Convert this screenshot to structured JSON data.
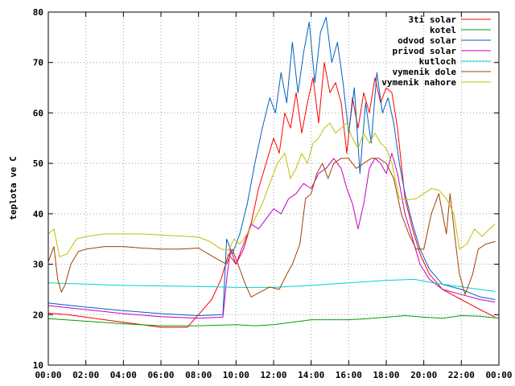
{
  "chart_data": {
    "type": "line",
    "ylabel": "teplota ve C",
    "xlabel": "",
    "ylim": [
      10,
      80
    ],
    "xlim": [
      0,
      24
    ],
    "grid": true,
    "legend_position": "top-right",
    "yticks": [
      10,
      20,
      30,
      40,
      50,
      60,
      70,
      80
    ],
    "xticks": [
      {
        "t": 0,
        "label": "00:00"
      },
      {
        "t": 2,
        "label": "02:00"
      },
      {
        "t": 4,
        "label": "04:00"
      },
      {
        "t": 6,
        "label": "06:00"
      },
      {
        "t": 8,
        "label": "08:00"
      },
      {
        "t": 10,
        "label": "10:00"
      },
      {
        "t": 12,
        "label": "12:00"
      },
      {
        "t": 14,
        "label": "14:00"
      },
      {
        "t": 16,
        "label": "16:00"
      },
      {
        "t": 18,
        "label": "18:00"
      },
      {
        "t": 20,
        "label": "20:00"
      },
      {
        "t": 22,
        "label": "22:00"
      },
      {
        "t": 24,
        "label": "00:00"
      }
    ],
    "series": [
      {
        "name": "3ti solar",
        "color": "#ff0000",
        "points": [
          [
            0,
            20.3
          ],
          [
            1,
            20
          ],
          [
            2,
            19.5
          ],
          [
            3,
            19
          ],
          [
            4,
            18.5
          ],
          [
            5,
            18
          ],
          [
            6,
            17.5
          ],
          [
            7.4,
            17.5
          ],
          [
            8,
            20
          ],
          [
            8.7,
            23
          ],
          [
            9.2,
            27
          ],
          [
            9.6,
            32
          ],
          [
            10,
            30
          ],
          [
            10.4,
            33
          ],
          [
            10.8,
            38
          ],
          [
            11.2,
            45
          ],
          [
            11.6,
            50
          ],
          [
            12,
            55
          ],
          [
            12.3,
            52
          ],
          [
            12.6,
            60
          ],
          [
            12.9,
            57
          ],
          [
            13.2,
            64
          ],
          [
            13.5,
            56
          ],
          [
            13.8,
            62
          ],
          [
            14.1,
            67
          ],
          [
            14.4,
            58
          ],
          [
            14.7,
            70
          ],
          [
            15,
            64
          ],
          [
            15.3,
            66
          ],
          [
            15.6,
            62
          ],
          [
            15.9,
            52
          ],
          [
            16.2,
            63
          ],
          [
            16.5,
            57
          ],
          [
            16.8,
            64
          ],
          [
            17.1,
            60
          ],
          [
            17.4,
            67
          ],
          [
            17.7,
            62
          ],
          [
            18,
            65
          ],
          [
            18.3,
            64
          ],
          [
            18.6,
            57
          ],
          [
            19,
            43
          ],
          [
            19.4,
            37
          ],
          [
            19.8,
            32
          ],
          [
            20.3,
            28
          ],
          [
            21,
            25
          ],
          [
            22,
            23
          ],
          [
            23,
            21
          ],
          [
            23.8,
            19.5
          ]
        ]
      },
      {
        "name": "kotel",
        "color": "#00a000",
        "points": [
          [
            0,
            19.2
          ],
          [
            2,
            18.7
          ],
          [
            4,
            18.2
          ],
          [
            6,
            17.8
          ],
          [
            8,
            17.8
          ],
          [
            10,
            18
          ],
          [
            11,
            17.8
          ],
          [
            12,
            18
          ],
          [
            13,
            18.5
          ],
          [
            14,
            19
          ],
          [
            15,
            19
          ],
          [
            16,
            19
          ],
          [
            17,
            19.2
          ],
          [
            18,
            19.5
          ],
          [
            19,
            19.8
          ],
          [
            20,
            19.5
          ],
          [
            21,
            19.3
          ],
          [
            22,
            19.8
          ],
          [
            23,
            19.7
          ],
          [
            24,
            19.3
          ]
        ]
      },
      {
        "name": "odvod solar",
        "color": "#0060c0",
        "points": [
          [
            0,
            22.3
          ],
          [
            2,
            21.5
          ],
          [
            4,
            20.8
          ],
          [
            6,
            20.2
          ],
          [
            8,
            19.8
          ],
          [
            9.3,
            20
          ],
          [
            9.5,
            35
          ],
          [
            9.8,
            32
          ],
          [
            10.2,
            36
          ],
          [
            10.6,
            42
          ],
          [
            11,
            50
          ],
          [
            11.4,
            57
          ],
          [
            11.8,
            63
          ],
          [
            12.1,
            60
          ],
          [
            12.4,
            68
          ],
          [
            12.7,
            62
          ],
          [
            13,
            74
          ],
          [
            13.3,
            64
          ],
          [
            13.6,
            72
          ],
          [
            13.9,
            78
          ],
          [
            14.2,
            66
          ],
          [
            14.5,
            76
          ],
          [
            14.8,
            79
          ],
          [
            15.1,
            70
          ],
          [
            15.4,
            74
          ],
          [
            15.7,
            66
          ],
          [
            16,
            56
          ],
          [
            16.3,
            65
          ],
          [
            16.6,
            48
          ],
          [
            16.9,
            62
          ],
          [
            17.2,
            54
          ],
          [
            17.5,
            68
          ],
          [
            17.8,
            60
          ],
          [
            18.1,
            63
          ],
          [
            18.4,
            58
          ],
          [
            18.7,
            50
          ],
          [
            19,
            44
          ],
          [
            19.4,
            38
          ],
          [
            19.8,
            33
          ],
          [
            20.3,
            29
          ],
          [
            21,
            26
          ],
          [
            22,
            25
          ],
          [
            23,
            23.5
          ],
          [
            23.8,
            23
          ]
        ]
      },
      {
        "name": "privod solar",
        "color": "#c000c0",
        "points": [
          [
            0,
            21.8
          ],
          [
            2,
            21
          ],
          [
            4,
            20.2
          ],
          [
            6,
            19.6
          ],
          [
            8,
            19.3
          ],
          [
            9.3,
            19.5
          ],
          [
            9.5,
            27
          ],
          [
            9.7,
            33
          ],
          [
            10,
            30
          ],
          [
            10.4,
            34
          ],
          [
            10.8,
            38
          ],
          [
            11.2,
            37
          ],
          [
            11.6,
            39
          ],
          [
            12,
            41
          ],
          [
            12.4,
            40
          ],
          [
            12.8,
            43
          ],
          [
            13.2,
            44
          ],
          [
            13.6,
            46
          ],
          [
            14,
            45
          ],
          [
            14.4,
            48
          ],
          [
            14.8,
            49
          ],
          [
            15.2,
            51
          ],
          [
            15.6,
            49
          ],
          [
            15.9,
            45
          ],
          [
            16.2,
            42
          ],
          [
            16.5,
            37
          ],
          [
            16.8,
            42
          ],
          [
            17.1,
            49
          ],
          [
            17.4,
            51
          ],
          [
            17.7,
            50
          ],
          [
            18,
            48
          ],
          [
            18.3,
            52
          ],
          [
            18.6,
            48
          ],
          [
            19,
            40
          ],
          [
            19.4,
            35
          ],
          [
            19.8,
            30
          ],
          [
            20.3,
            27
          ],
          [
            21,
            25
          ],
          [
            22,
            24
          ],
          [
            23,
            23
          ],
          [
            23.8,
            22.5
          ]
        ]
      },
      {
        "name": "kutloch",
        "color": "#00d0d0",
        "points": [
          [
            0,
            26.3
          ],
          [
            4,
            25.8
          ],
          [
            8,
            25.6
          ],
          [
            10,
            25.4
          ],
          [
            12,
            25.4
          ],
          [
            14,
            25.8
          ],
          [
            16,
            26.3
          ],
          [
            18,
            26.8
          ],
          [
            19.5,
            27
          ],
          [
            20.5,
            26.3
          ],
          [
            22,
            25.5
          ],
          [
            23.8,
            24.6
          ]
        ]
      },
      {
        "name": "vymenik dole",
        "color": "#a04000",
        "points": [
          [
            0,
            30.5
          ],
          [
            0.3,
            33.5
          ],
          [
            0.5,
            27
          ],
          [
            0.7,
            24.5
          ],
          [
            0.9,
            26
          ],
          [
            1.2,
            30
          ],
          [
            1.6,
            32.5
          ],
          [
            2,
            33
          ],
          [
            3,
            33.5
          ],
          [
            4,
            33.5
          ],
          [
            5,
            33.2
          ],
          [
            6,
            33
          ],
          [
            7,
            33
          ],
          [
            8,
            33.2
          ],
          [
            9,
            31
          ],
          [
            9.5,
            30
          ],
          [
            9.8,
            33
          ],
          [
            10.1,
            30
          ],
          [
            10.5,
            26
          ],
          [
            10.8,
            23.5
          ],
          [
            11.3,
            24.5
          ],
          [
            11.8,
            25.5
          ],
          [
            12.3,
            25
          ],
          [
            12.7,
            28
          ],
          [
            13,
            30
          ],
          [
            13.4,
            34
          ],
          [
            13.7,
            43
          ],
          [
            14,
            44
          ],
          [
            14.3,
            48
          ],
          [
            14.6,
            50
          ],
          [
            14.9,
            47
          ],
          [
            15.2,
            50
          ],
          [
            15.6,
            51
          ],
          [
            16,
            51
          ],
          [
            16.4,
            49
          ],
          [
            16.8,
            50
          ],
          [
            17.2,
            51
          ],
          [
            17.6,
            51
          ],
          [
            18,
            50
          ],
          [
            18.4,
            47
          ],
          [
            18.8,
            40
          ],
          [
            19.2,
            36
          ],
          [
            19.6,
            33
          ],
          [
            20,
            33
          ],
          [
            20.4,
            40
          ],
          [
            20.8,
            44
          ],
          [
            21,
            40
          ],
          [
            21.2,
            36
          ],
          [
            21.4,
            44
          ],
          [
            21.7,
            34
          ],
          [
            21.9,
            28
          ],
          [
            22.2,
            24
          ],
          [
            22.6,
            28
          ],
          [
            22.9,
            33
          ],
          [
            23.3,
            34
          ],
          [
            23.8,
            34.5
          ]
        ]
      },
      {
        "name": "vymenik nahore",
        "color": "#c0c000",
        "points": [
          [
            0,
            36
          ],
          [
            0.3,
            37
          ],
          [
            0.6,
            31.5
          ],
          [
            1,
            32
          ],
          [
            1.5,
            35
          ],
          [
            2,
            35.5
          ],
          [
            3,
            36
          ],
          [
            4,
            36
          ],
          [
            5,
            36
          ],
          [
            6,
            35.8
          ],
          [
            7,
            35.6
          ],
          [
            8,
            35.4
          ],
          [
            8.6,
            34.5
          ],
          [
            9.2,
            33
          ],
          [
            9.6,
            32.8
          ],
          [
            9.9,
            35
          ],
          [
            10.2,
            34
          ],
          [
            10.6,
            36
          ],
          [
            11,
            39
          ],
          [
            11.4,
            42
          ],
          [
            11.8,
            46
          ],
          [
            12.2,
            50
          ],
          [
            12.6,
            52
          ],
          [
            12.9,
            47
          ],
          [
            13.2,
            49
          ],
          [
            13.5,
            52
          ],
          [
            13.8,
            50
          ],
          [
            14.1,
            54
          ],
          [
            14.4,
            55
          ],
          [
            14.7,
            57
          ],
          [
            15,
            58
          ],
          [
            15.3,
            56
          ],
          [
            15.6,
            57
          ],
          [
            15.9,
            58
          ],
          [
            16.2,
            55
          ],
          [
            16.5,
            53
          ],
          [
            16.8,
            56
          ],
          [
            17.1,
            54
          ],
          [
            17.4,
            56
          ],
          [
            17.7,
            54
          ],
          [
            18,
            53
          ],
          [
            18.3,
            50
          ],
          [
            18.7,
            43
          ],
          [
            19.2,
            42.8
          ],
          [
            19.6,
            43
          ],
          [
            20,
            44
          ],
          [
            20.4,
            45
          ],
          [
            20.8,
            44.7
          ],
          [
            21.2,
            43
          ],
          [
            21.6,
            40
          ],
          [
            21.9,
            33
          ],
          [
            22.3,
            34
          ],
          [
            22.7,
            37
          ],
          [
            23.1,
            35.5
          ],
          [
            23.5,
            37
          ],
          [
            23.8,
            38
          ]
        ]
      }
    ]
  }
}
